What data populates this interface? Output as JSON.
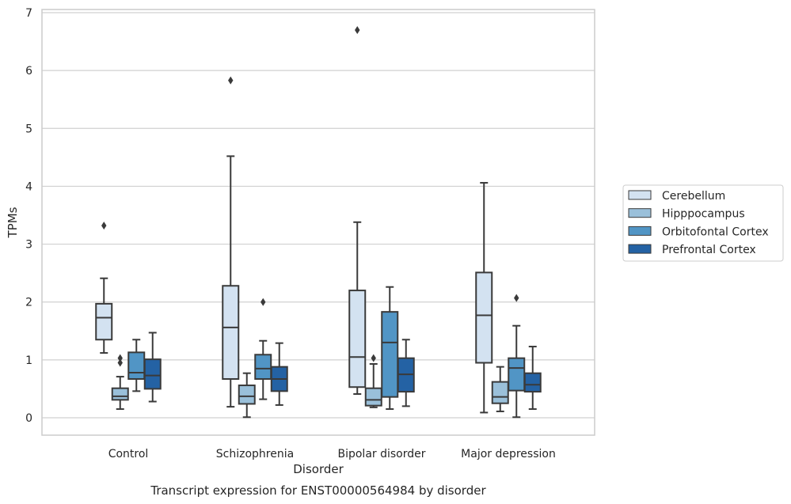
{
  "chart_data": {
    "type": "box",
    "title": "",
    "caption": "Transcript expression for ENST00000564984 by disorder",
    "xlabel": "Disorder",
    "ylabel": "TPMs",
    "ylim": [
      -0.3,
      7.05
    ],
    "yticks": [
      0,
      1,
      2,
      3,
      4,
      5,
      6,
      7
    ],
    "grid": "horizontal",
    "legend_position": "right",
    "categories": [
      "Control",
      "Schizophrenia",
      "Bipolar disorder",
      "Major depression"
    ],
    "series": [
      {
        "name": "Cerebellum",
        "color": "#d3e2f1",
        "boxes": [
          {
            "whisker_low": 1.12,
            "q1": 1.35,
            "median": 1.73,
            "q3": 1.97,
            "whisker_high": 2.41,
            "outliers": [
              3.32
            ]
          },
          {
            "whisker_low": 0.19,
            "q1": 0.67,
            "median": 1.56,
            "q3": 2.28,
            "whisker_high": 4.52,
            "outliers": [
              5.83
            ]
          },
          {
            "whisker_low": 0.41,
            "q1": 0.53,
            "median": 1.05,
            "q3": 2.2,
            "whisker_high": 3.38,
            "outliers": [
              6.7
            ]
          },
          {
            "whisker_low": 0.09,
            "q1": 0.95,
            "median": 1.77,
            "q3": 2.51,
            "whisker_high": 4.06,
            "outliers": []
          }
        ]
      },
      {
        "name": "Hipppocampus",
        "color": "#9ac0da",
        "boxes": [
          {
            "whisker_low": 0.15,
            "q1": 0.31,
            "median": 0.37,
            "q3": 0.51,
            "whisker_high": 0.71,
            "outliers": [
              0.95,
              1.03
            ]
          },
          {
            "whisker_low": 0.01,
            "q1": 0.24,
            "median": 0.37,
            "q3": 0.56,
            "whisker_high": 0.77,
            "outliers": []
          },
          {
            "whisker_low": 0.18,
            "q1": 0.21,
            "median": 0.31,
            "q3": 0.51,
            "whisker_high": 0.93,
            "outliers": [
              1.03
            ]
          },
          {
            "whisker_low": 0.11,
            "q1": 0.25,
            "median": 0.36,
            "q3": 0.62,
            "whisker_high": 0.88,
            "outliers": []
          }
        ]
      },
      {
        "name": "Orbitofontal Cortex",
        "color": "#5195c5",
        "boxes": [
          {
            "whisker_low": 0.46,
            "q1": 0.67,
            "median": 0.78,
            "q3": 1.13,
            "whisker_high": 1.35,
            "outliers": []
          },
          {
            "whisker_low": 0.32,
            "q1": 0.67,
            "median": 0.85,
            "q3": 1.09,
            "whisker_high": 1.33,
            "outliers": [
              2.0
            ]
          },
          {
            "whisker_low": 0.15,
            "q1": 0.36,
            "median": 1.3,
            "q3": 1.83,
            "whisker_high": 2.26,
            "outliers": []
          },
          {
            "whisker_low": 0.01,
            "q1": 0.47,
            "median": 0.86,
            "q3": 1.03,
            "whisker_high": 1.59,
            "outliers": [
              2.07
            ]
          }
        ]
      },
      {
        "name": "Prefrontal Cortex",
        "color": "#2462a4",
        "boxes": [
          {
            "whisker_low": 0.28,
            "q1": 0.5,
            "median": 0.73,
            "q3": 1.01,
            "whisker_high": 1.47,
            "outliers": []
          },
          {
            "whisker_low": 0.22,
            "q1": 0.46,
            "median": 0.67,
            "q3": 0.88,
            "whisker_high": 1.29,
            "outliers": []
          },
          {
            "whisker_low": 0.2,
            "q1": 0.45,
            "median": 0.75,
            "q3": 1.03,
            "whisker_high": 1.35,
            "outliers": []
          },
          {
            "whisker_low": 0.15,
            "q1": 0.45,
            "median": 0.57,
            "q3": 0.77,
            "whisker_high": 1.23,
            "outliers": []
          }
        ]
      }
    ]
  }
}
